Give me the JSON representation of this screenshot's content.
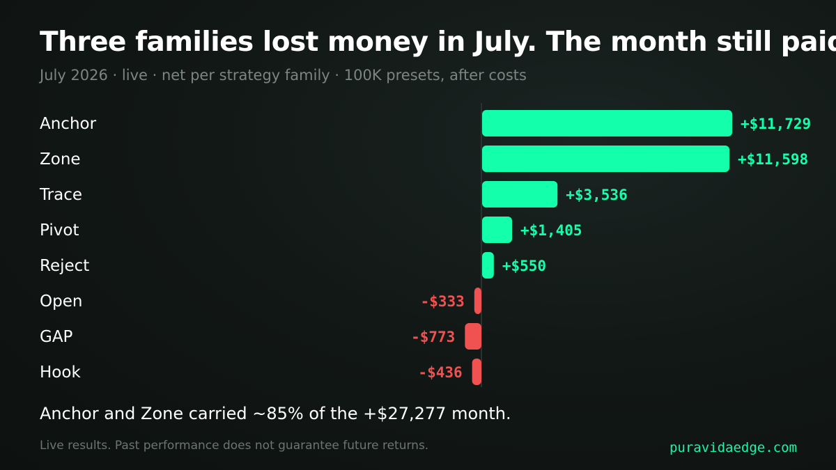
{
  "title": "Three families lost money in July. The month still paid.",
  "subtitle": "July 2026 · live · net per strategy family · 100K presets, after costs",
  "callout": "Anchor and Zone carried ~85% of the +$27,277 month.",
  "footnote": "Live results. Past performance does not guarantee future returns.",
  "brand": "puravidaedge.com",
  "colors": {
    "positive": "#14ffac",
    "negative": "#f05252",
    "background": "#121816"
  },
  "chart_data": {
    "type": "bar",
    "orientation": "horizontal",
    "categories": [
      "Anchor",
      "Zone",
      "Trace",
      "Pivot",
      "Reject",
      "Open",
      "GAP",
      "Hook"
    ],
    "values": [
      11729,
      11598,
      3536,
      1405,
      550,
      -333,
      -773,
      -436
    ],
    "value_labels": [
      "+$11,729",
      "+$11,598",
      "+$3,536",
      "+$1,405",
      "+$550",
      "-$333",
      "-$773",
      "-$436"
    ],
    "unit": "USD",
    "title": "Three families lost money in July. The month still paid.",
    "subtitle": "July 2026 · live · net per strategy family · 100K presets, after costs",
    "xlabel": "",
    "ylabel": "",
    "grid": false,
    "legend": "none"
  }
}
